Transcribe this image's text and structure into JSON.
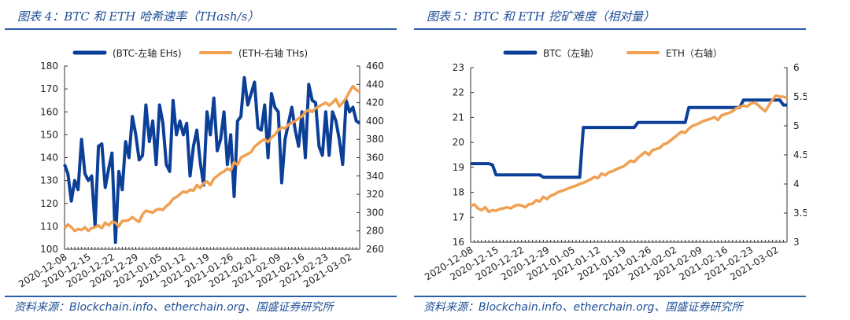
{
  "chart_data": [
    {
      "type": "line",
      "title": "图表 4：BTC 和 ETH 哈希速率（THash/s）",
      "source": "资料来源：Blockchain.info、etherchain.org、国盛证券研究所",
      "start_date": "2020-12-08",
      "xticks": [
        "2020-12-08",
        "2020-12-15",
        "2020-12-22",
        "2020-12-29",
        "2021-01-05",
        "2021-01-12",
        "2021-01-19",
        "2021-01-26",
        "2021-02-02",
        "2021-02-09",
        "2021-02-16",
        "2021-02-23",
        "2021-03-02"
      ],
      "yleft": {
        "range": [
          100,
          180
        ],
        "ticks": [
          100,
          110,
          120,
          130,
          140,
          150,
          160,
          170,
          180
        ]
      },
      "yright": {
        "range": [
          260,
          460
        ],
        "ticks": [
          260,
          280,
          300,
          320,
          340,
          360,
          380,
          400,
          420,
          440,
          460
        ]
      },
      "legend_position": "top",
      "series": [
        {
          "name": "(BTC-左轴 EHs)",
          "axis": "left",
          "color": "#0b3f98",
          "values": [
            137,
            133,
            121,
            130,
            126,
            148,
            133,
            130,
            132,
            110,
            145,
            146,
            127,
            135,
            142,
            103,
            134,
            126,
            147,
            140,
            158,
            150,
            139,
            141,
            163,
            147,
            156,
            137,
            163,
            155,
            137,
            134,
            165,
            150,
            156,
            150,
            155,
            132,
            145,
            152,
            138,
            128,
            160,
            150,
            166,
            143,
            148,
            160,
            137,
            150,
            123,
            156,
            158,
            175,
            163,
            168,
            173,
            153,
            152,
            163,
            140,
            168,
            162,
            160,
            129,
            148,
            155,
            162,
            152,
            145,
            160,
            140,
            172,
            165,
            164,
            145,
            141,
            160,
            141,
            160,
            156,
            148,
            137,
            165,
            160,
            162,
            156,
            155
          ]
        },
        {
          "name": "(ETH-右轴 THs)",
          "axis": "right",
          "color": "#f0a050",
          "values": [
            283,
            287,
            284,
            280,
            282,
            281,
            284,
            280,
            283,
            284,
            286,
            283,
            289,
            286,
            290,
            289,
            285,
            291,
            291,
            292,
            295,
            292,
            290,
            298,
            302,
            301,
            300,
            303,
            304,
            303,
            307,
            310,
            315,
            317,
            320,
            323,
            322,
            325,
            324,
            330,
            327,
            332,
            334,
            330,
            337,
            340,
            343,
            345,
            348,
            346,
            355,
            352,
            360,
            362,
            364,
            366,
            372,
            375,
            378,
            380,
            377,
            382,
            385,
            390,
            393,
            392,
            396,
            398,
            400,
            403,
            405,
            410,
            412,
            410,
            414,
            416,
            418,
            420,
            417,
            420,
            424,
            416,
            420,
            425,
            432,
            438,
            434,
            432
          ]
        }
      ]
    },
    {
      "type": "line",
      "title": "图表 5：BTC 和 ETH 挖矿难度（相对量）",
      "source": "资料来源：Blockchain.info、etherchain.org、国盛证券研究所",
      "start_date": "2020-12-08",
      "xticks": [
        "2020-12-08",
        "2020-12-15",
        "2020-12-22",
        "2020-12-29",
        "2021-01-05",
        "2021-01-12",
        "2021-01-19",
        "2021-01-26",
        "2021-02-02",
        "2021-02-09",
        "2021-02-16",
        "2021-02-23",
        "2021-03-02"
      ],
      "yleft": {
        "range": [
          16,
          23
        ],
        "ticks": [
          16,
          17,
          18,
          19,
          20,
          21,
          22,
          23
        ]
      },
      "yright": {
        "range": [
          3,
          6
        ],
        "ticks": [
          3,
          3.5,
          4,
          4.5,
          5,
          5.5,
          6
        ]
      },
      "legend_position": "top",
      "series": [
        {
          "name": "BTC（左轴）",
          "axis": "left",
          "color": "#0b3f98",
          "values": [
            19.15,
            19.15,
            19.15,
            19.15,
            19.15,
            19.15,
            19.1,
            18.7,
            18.7,
            18.7,
            18.7,
            18.7,
            18.7,
            18.7,
            18.7,
            18.7,
            18.7,
            18.7,
            18.7,
            18.7,
            18.6,
            18.6,
            18.6,
            18.6,
            18.6,
            18.6,
            18.6,
            18.6,
            18.6,
            18.6,
            18.6,
            20.6,
            20.6,
            20.6,
            20.6,
            20.6,
            20.6,
            20.6,
            20.6,
            20.6,
            20.6,
            20.6,
            20.6,
            20.6,
            20.6,
            20.6,
            20.8,
            20.8,
            20.8,
            20.8,
            20.8,
            20.8,
            20.8,
            20.8,
            20.8,
            20.8,
            20.8,
            20.8,
            20.8,
            20.8,
            21.4,
            21.4,
            21.4,
            21.4,
            21.4,
            21.4,
            21.4,
            21.4,
            21.4,
            21.4,
            21.4,
            21.4,
            21.4,
            21.4,
            21.4,
            21.7,
            21.7,
            21.7,
            21.7,
            21.7,
            21.7,
            21.7,
            21.7,
            21.7,
            21.7,
            21.7,
            21.5,
            21.5
          ]
        },
        {
          "name": "ETH（右轴）",
          "axis": "right",
          "color": "#f0a050",
          "values": [
            3.62,
            3.65,
            3.58,
            3.55,
            3.6,
            3.52,
            3.55,
            3.54,
            3.57,
            3.58,
            3.6,
            3.58,
            3.62,
            3.64,
            3.63,
            3.6,
            3.65,
            3.66,
            3.72,
            3.7,
            3.78,
            3.74,
            3.8,
            3.82,
            3.86,
            3.88,
            3.9,
            3.93,
            3.95,
            3.97,
            4.0,
            4.02,
            4.05,
            4.08,
            4.12,
            4.1,
            4.18,
            4.15,
            4.2,
            4.22,
            4.25,
            4.28,
            4.3,
            4.35,
            4.4,
            4.38,
            4.45,
            4.5,
            4.55,
            4.5,
            4.58,
            4.6,
            4.62,
            4.68,
            4.7,
            4.75,
            4.8,
            4.85,
            4.9,
            4.88,
            4.95,
            5.0,
            5.02,
            5.05,
            5.08,
            5.1,
            5.12,
            5.15,
            5.1,
            5.18,
            5.2,
            5.22,
            5.25,
            5.3,
            5.32,
            5.35,
            5.33,
            5.38,
            5.4,
            5.36,
            5.3,
            5.25,
            5.35,
            5.45,
            5.52,
            5.5,
            5.5,
            5.48
          ]
        }
      ]
    }
  ]
}
